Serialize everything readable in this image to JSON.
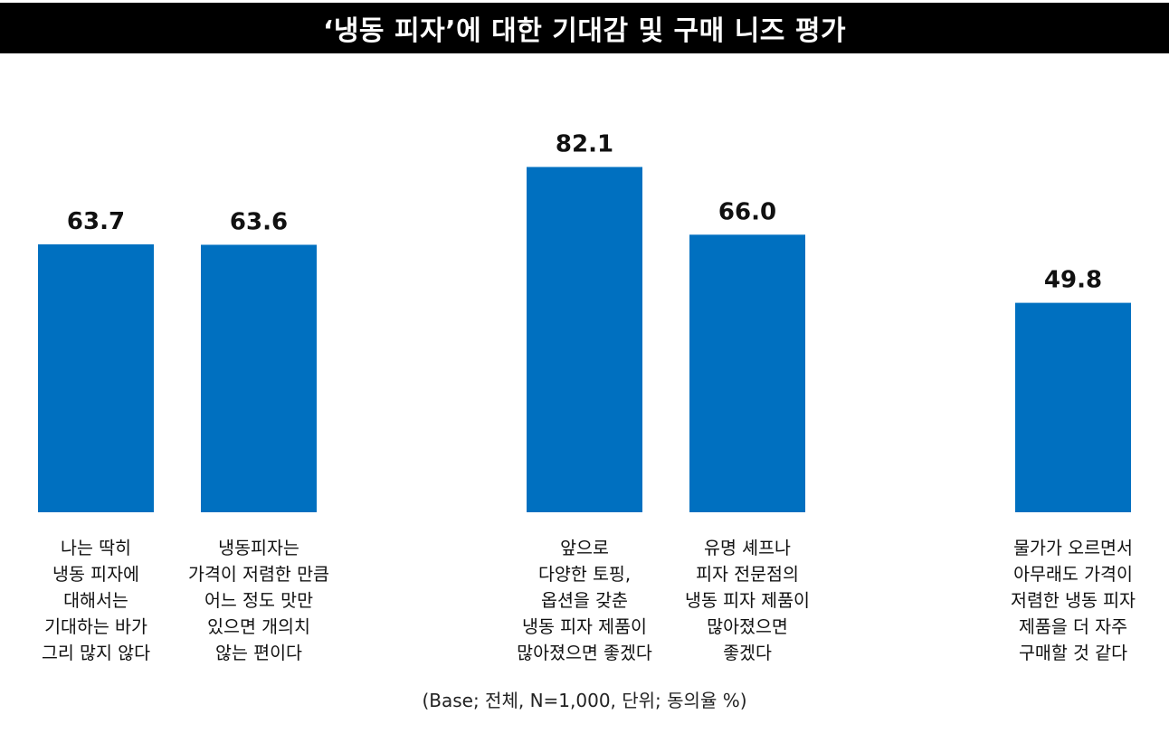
{
  "title": "‘냉동 피자’에 대한 기대감 및 구매 니즈 평가",
  "footnote": "(Base; 전체, N=1,000, 단위; 동의율 %)",
  "colors": {
    "bar": "#0070C0",
    "title_bg": "#000000",
    "title_text": "#FFFFFF"
  },
  "chart_data": {
    "type": "bar",
    "categories": [
      "나는 딱히\n냉동 피자에\n대해서는\n기대하는 바가\n그리 많지 않다",
      "냉동피자는\n가격이 저렴한 만큼\n어느 정도 맛만\n있으면 개의치\n않는 편이다",
      "앞으로\n다양한 토핑,\n옵션을 갖춘\n냉동 피자 제품이\n많아졌으면 좋겠다",
      "유명 셰프나\n피자 전문점의\n냉동 피자 제품이\n많아졌으면\n좋겠다",
      "물가가 오르면서\n아무래도 가격이\n저렴한 냉동 피자\n제품을 더 자주\n구매할 것 같다"
    ],
    "values": [
      63.7,
      63.6,
      82.1,
      66.0,
      49.8
    ],
    "data_labels": [
      "63.7",
      "63.6",
      "82.1",
      "66.0",
      "49.8"
    ],
    "ylim": [
      0,
      100
    ],
    "grid": false,
    "legend": "none"
  }
}
